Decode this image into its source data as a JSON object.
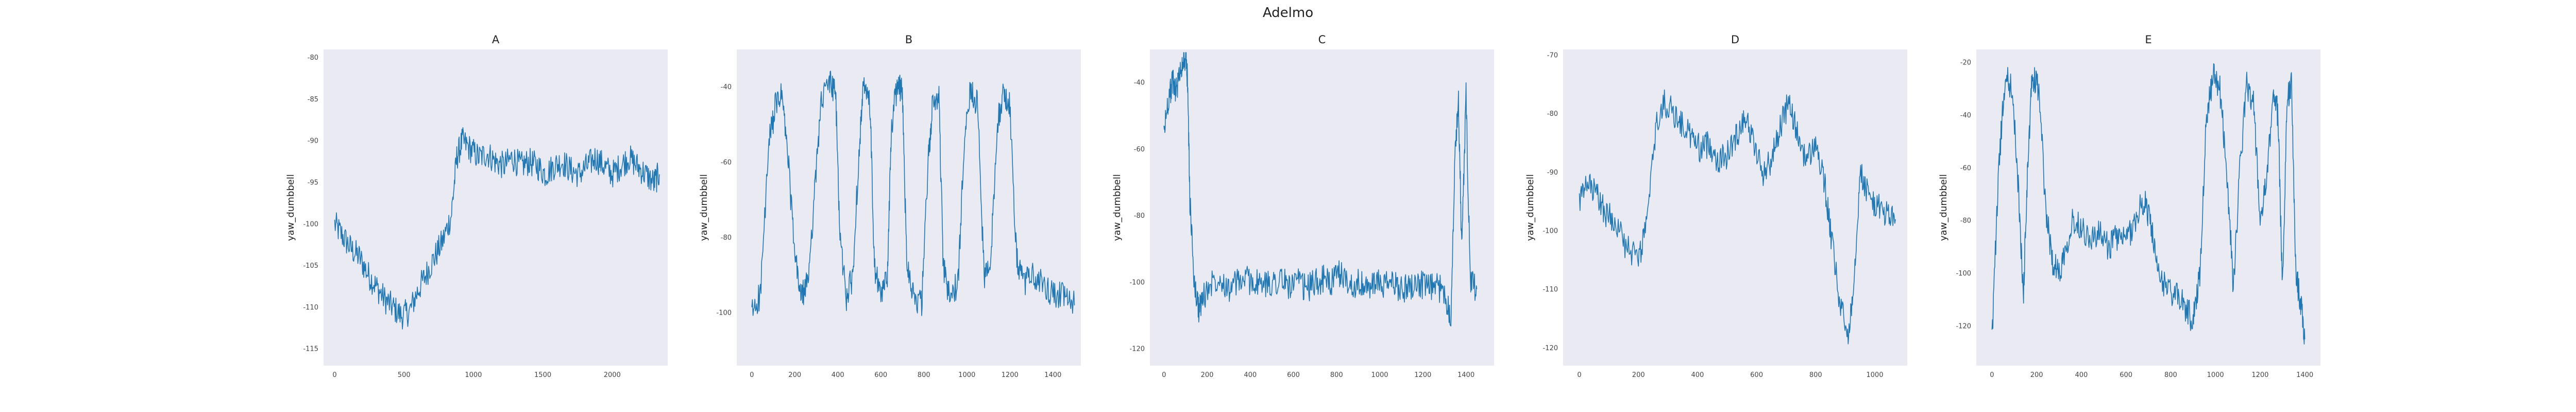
{
  "figure": {
    "title": "Adelmo"
  },
  "colors": {
    "panel_bg": "#eaeaf2",
    "line": "#1f77b4"
  },
  "chart_data": [
    {
      "type": "line",
      "title": "A",
      "xlabel": "",
      "ylabel": "yaw_dumbbell",
      "xlim": [
        -80,
        2400
      ],
      "ylim": [
        -117,
        -79
      ],
      "grid": false,
      "xticks": [
        0,
        500,
        1000,
        1500,
        2000
      ],
      "yticks": [
        -115,
        -110,
        -105,
        -100,
        -95,
        -90,
        -85,
        -80
      ],
      "series": [
        {
          "values": [
            [
              0,
              -100
            ],
            [
              60,
              -101.5
            ],
            [
              120,
              -103
            ],
            [
              180,
              -104
            ],
            [
              240,
              -106
            ],
            [
              300,
              -107.5
            ],
            [
              360,
              -109
            ],
            [
              420,
              -110
            ],
            [
              480,
              -111
            ],
            [
              540,
              -110.5
            ],
            [
              600,
              -108
            ],
            [
              660,
              -106
            ],
            [
              720,
              -104
            ],
            [
              780,
              -102
            ],
            [
              840,
              -99
            ],
            [
              880,
              -92
            ],
            [
              920,
              -90
            ],
            [
              980,
              -91
            ],
            [
              1040,
              -92
            ],
            [
              1100,
              -91.5
            ],
            [
              1160,
              -92.5
            ],
            [
              1220,
              -93
            ],
            [
              1280,
              -92
            ],
            [
              1340,
              -93
            ],
            [
              1400,
              -92.5
            ],
            [
              1460,
              -93
            ],
            [
              1520,
              -94
            ],
            [
              1580,
              -93
            ],
            [
              1640,
              -92.5
            ],
            [
              1700,
              -93.5
            ],
            [
              1760,
              -94
            ],
            [
              1820,
              -93
            ],
            [
              1880,
              -92
            ],
            [
              1940,
              -93
            ],
            [
              2000,
              -94
            ],
            [
              2060,
              -93
            ],
            [
              2120,
              -92
            ],
            [
              2180,
              -93
            ],
            [
              2240,
              -94
            ],
            [
              2300,
              -95
            ],
            [
              2340,
              -94
            ]
          ]
        }
      ]
    },
    {
      "type": "line",
      "title": "B",
      "xlabel": "",
      "ylabel": "yaw_dumbbell",
      "xlim": [
        -70,
        1530
      ],
      "ylim": [
        -114,
        -30
      ],
      "grid": false,
      "xticks": [
        0,
        200,
        400,
        600,
        800,
        1000,
        1200,
        1400
      ],
      "yticks": [
        -100,
        -80,
        -60,
        -40
      ],
      "series": [
        {
          "values": [
            [
              0,
              -100
            ],
            [
              40,
              -95
            ],
            [
              80,
              -55
            ],
            [
              110,
              -45
            ],
            [
              140,
              -42
            ],
            [
              170,
              -60
            ],
            [
              200,
              -85
            ],
            [
              230,
              -96
            ],
            [
              260,
              -92
            ],
            [
              290,
              -70
            ],
            [
              320,
              -45
            ],
            [
              360,
              -38
            ],
            [
              390,
              -42
            ],
            [
              410,
              -80
            ],
            [
              440,
              -96
            ],
            [
              470,
              -90
            ],
            [
              500,
              -55
            ],
            [
              520,
              -40
            ],
            [
              550,
              -45
            ],
            [
              570,
              -88
            ],
            [
              600,
              -96
            ],
            [
              630,
              -90
            ],
            [
              650,
              -50
            ],
            [
              680,
              -38
            ],
            [
              700,
              -42
            ],
            [
              720,
              -85
            ],
            [
              750,
              -95
            ],
            [
              790,
              -98
            ],
            [
              820,
              -60
            ],
            [
              840,
              -45
            ],
            [
              870,
              -42
            ],
            [
              890,
              -88
            ],
            [
              920,
              -96
            ],
            [
              960,
              -92
            ],
            [
              990,
              -50
            ],
            [
              1020,
              -40
            ],
            [
              1050,
              -45
            ],
            [
              1080,
              -90
            ],
            [
              1110,
              -88
            ],
            [
              1140,
              -50
            ],
            [
              1170,
              -42
            ],
            [
              1200,
              -45
            ],
            [
              1230,
              -85
            ],
            [
              1260,
              -92
            ],
            [
              1300,
              -90
            ],
            [
              1340,
              -92
            ],
            [
              1380,
              -94
            ],
            [
              1420,
              -95
            ],
            [
              1460,
              -96
            ],
            [
              1500,
              -98
            ]
          ]
        }
      ]
    },
    {
      "type": "line",
      "title": "C",
      "xlabel": "",
      "ylabel": "yaw_dumbbell",
      "xlim": [
        -65,
        1530
      ],
      "ylim": [
        -125,
        -30
      ],
      "grid": false,
      "xticks": [
        0,
        200,
        400,
        600,
        800,
        1000,
        1200,
        1400
      ],
      "yticks": [
        -120,
        -100,
        -80,
        -60,
        -40
      ],
      "series": [
        {
          "values": [
            [
              0,
              -55
            ],
            [
              20,
              -45
            ],
            [
              40,
              -40
            ],
            [
              60,
              -42
            ],
            [
              80,
              -35
            ],
            [
              100,
              -32
            ],
            [
              110,
              -40
            ],
            [
              120,
              -75
            ],
            [
              140,
              -100
            ],
            [
              160,
              -108
            ],
            [
              180,
              -105
            ],
            [
              220,
              -100
            ],
            [
              260,
              -98
            ],
            [
              300,
              -102
            ],
            [
              340,
              -100
            ],
            [
              380,
              -99
            ],
            [
              420,
              -100
            ],
            [
              460,
              -101
            ],
            [
              500,
              -100
            ],
            [
              540,
              -99
            ],
            [
              580,
              -101
            ],
            [
              620,
              -100
            ],
            [
              660,
              -102
            ],
            [
              700,
              -100
            ],
            [
              740,
              -99
            ],
            [
              780,
              -100
            ],
            [
              820,
              -97
            ],
            [
              860,
              -101
            ],
            [
              900,
              -100
            ],
            [
              940,
              -102
            ],
            [
              980,
              -100
            ],
            [
              1020,
              -101
            ],
            [
              1060,
              -100
            ],
            [
              1100,
              -102
            ],
            [
              1140,
              -101
            ],
            [
              1180,
              -100
            ],
            [
              1220,
              -102
            ],
            [
              1260,
              -101
            ],
            [
              1300,
              -103
            ],
            [
              1330,
              -110
            ],
            [
              1350,
              -60
            ],
            [
              1365,
              -45
            ],
            [
              1380,
              -90
            ],
            [
              1400,
              -44
            ],
            [
              1420,
              -100
            ],
            [
              1450,
              -102
            ]
          ]
        }
      ]
    },
    {
      "type": "line",
      "title": "D",
      "xlabel": "",
      "ylabel": "yaw_dumbbell",
      "xlim": [
        -55,
        1110
      ],
      "ylim": [
        -123,
        -69
      ],
      "grid": false,
      "xticks": [
        0,
        200,
        400,
        600,
        800,
        1000
      ],
      "yticks": [
        -120,
        -110,
        -100,
        -90,
        -80,
        -70
      ],
      "series": [
        {
          "values": [
            [
              0,
              -95
            ],
            [
              30,
              -92
            ],
            [
              60,
              -94
            ],
            [
              90,
              -97
            ],
            [
              120,
              -98
            ],
            [
              160,
              -103
            ],
            [
              200,
              -105
            ],
            [
              230,
              -98
            ],
            [
              260,
              -82
            ],
            [
              290,
              -78
            ],
            [
              320,
              -80
            ],
            [
              350,
              -82
            ],
            [
              380,
              -84
            ],
            [
              410,
              -86
            ],
            [
              440,
              -85
            ],
            [
              470,
              -88
            ],
            [
              500,
              -87
            ],
            [
              530,
              -84
            ],
            [
              560,
              -80
            ],
            [
              590,
              -85
            ],
            [
              620,
              -90
            ],
            [
              650,
              -88
            ],
            [
              680,
              -82
            ],
            [
              710,
              -78
            ],
            [
              740,
              -84
            ],
            [
              770,
              -88
            ],
            [
              800,
              -85
            ],
            [
              830,
              -92
            ],
            [
              850,
              -100
            ],
            [
              880,
              -112
            ],
            [
              910,
              -118
            ],
            [
              930,
              -108
            ],
            [
              950,
              -90
            ],
            [
              980,
              -94
            ],
            [
              1010,
              -96
            ],
            [
              1040,
              -97
            ],
            [
              1070,
              -98
            ]
          ]
        }
      ]
    },
    {
      "type": "line",
      "title": "E",
      "xlabel": "",
      "ylabel": "yaw_dumbbell",
      "xlim": [
        -70,
        1470
      ],
      "ylim": [
        -135,
        -15
      ],
      "grid": false,
      "xticks": [
        0,
        200,
        400,
        600,
        800,
        1000,
        1200,
        1400
      ],
      "yticks": [
        -120,
        -100,
        -80,
        -60,
        -40,
        -20
      ],
      "series": [
        {
          "values": [
            [
              0,
              -125
            ],
            [
              30,
              -60
            ],
            [
              60,
              -25
            ],
            [
              90,
              -30
            ],
            [
              120,
              -70
            ],
            [
              140,
              -110
            ],
            [
              160,
              -60
            ],
            [
              180,
              -25
            ],
            [
              210,
              -30
            ],
            [
              240,
              -75
            ],
            [
              270,
              -95
            ],
            [
              300,
              -100
            ],
            [
              330,
              -90
            ],
            [
              360,
              -80
            ],
            [
              400,
              -82
            ],
            [
              440,
              -87
            ],
            [
              480,
              -85
            ],
            [
              520,
              -90
            ],
            [
              560,
              -86
            ],
            [
              600,
              -88
            ],
            [
              640,
              -80
            ],
            [
              680,
              -72
            ],
            [
              710,
              -80
            ],
            [
              740,
              -100
            ],
            [
              780,
              -105
            ],
            [
              820,
              -108
            ],
            [
              860,
              -112
            ],
            [
              900,
              -118
            ],
            [
              930,
              -100
            ],
            [
              960,
              -40
            ],
            [
              990,
              -25
            ],
            [
              1020,
              -30
            ],
            [
              1050,
              -60
            ],
            [
              1080,
              -105
            ],
            [
              1110,
              -60
            ],
            [
              1140,
              -28
            ],
            [
              1170,
              -35
            ],
            [
              1200,
              -80
            ],
            [
              1230,
              -65
            ],
            [
              1260,
              -30
            ],
            [
              1280,
              -40
            ],
            [
              1300,
              -105
            ],
            [
              1320,
              -35
            ],
            [
              1340,
              -28
            ],
            [
              1360,
              -100
            ],
            [
              1380,
              -110
            ],
            [
              1400,
              -125
            ]
          ]
        }
      ]
    }
  ]
}
